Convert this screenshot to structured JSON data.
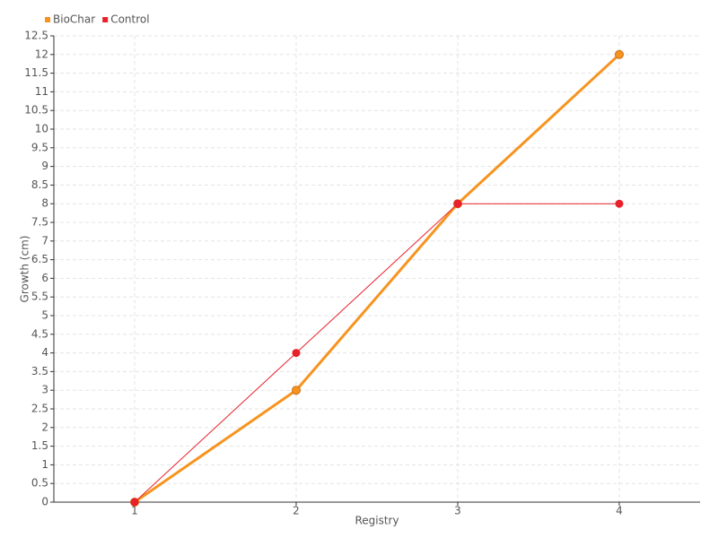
{
  "chart_data": {
    "type": "line",
    "x_label": "Registry",
    "y_label": "Growth (cm)",
    "x": [
      1,
      2,
      3,
      4
    ],
    "xlim": [
      0.5,
      4.5
    ],
    "xticks": [
      1,
      2,
      3,
      4
    ],
    "ylim": [
      0,
      12.5
    ],
    "yticks": [
      0,
      0.5,
      1,
      1.5,
      2,
      2.5,
      3,
      3.5,
      4,
      4.5,
      5,
      5.5,
      6,
      6.5,
      7,
      7.5,
      8,
      8.5,
      9,
      9.5,
      10,
      10.5,
      11,
      11.5,
      12,
      12.5
    ],
    "grid": true,
    "legend": "top-left",
    "series": [
      {
        "name": "BioChar",
        "color": "#f7931e",
        "values": [
          0,
          3,
          8,
          12
        ]
      },
      {
        "name": "Control",
        "color": "#e8202a",
        "values": [
          0,
          4,
          8,
          8
        ]
      }
    ]
  }
}
